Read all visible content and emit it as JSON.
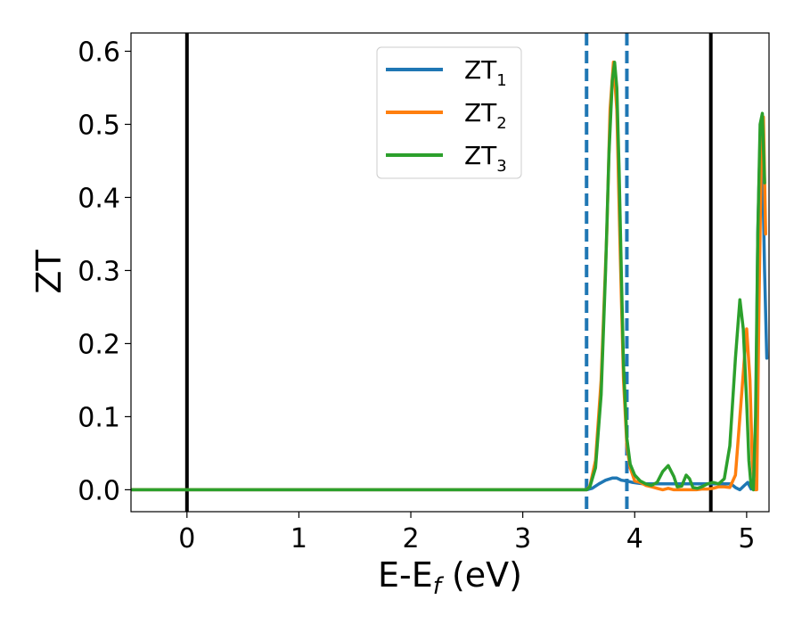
{
  "chart_data": {
    "type": "line",
    "title": "",
    "xlabel": "E-E",
    "xlabel_sub": "f",
    "xlabel_unit": " (eV)",
    "ylabel": "ZT",
    "xlim": [
      -0.5,
      5.2
    ],
    "ylim": [
      -0.03,
      0.625
    ],
    "xticks": [
      0,
      1,
      2,
      3,
      4,
      5
    ],
    "xtick_labels": [
      "0",
      "1",
      "2",
      "3",
      "4",
      "5"
    ],
    "yticks": [
      0.0,
      0.1,
      0.2,
      0.3,
      0.4,
      0.5,
      0.6
    ],
    "ytick_labels": [
      "0.0",
      "0.1",
      "0.2",
      "0.3",
      "0.4",
      "0.5",
      "0.6"
    ],
    "grid": false,
    "legend_position": "top-center",
    "vlines": [
      {
        "x": 0.0,
        "style": "solid",
        "color": "#000000"
      },
      {
        "x": 4.68,
        "style": "solid",
        "color": "#000000"
      },
      {
        "x": 3.57,
        "style": "dashed",
        "color": "#1f77b4"
      },
      {
        "x": 3.93,
        "style": "dashed",
        "color": "#1f77b4"
      }
    ],
    "series": [
      {
        "name": "ZT",
        "sub": "1",
        "color": "#1f77b4",
        "x": [
          -0.5,
          3.57,
          3.62,
          3.68,
          3.74,
          3.8,
          3.84,
          3.88,
          3.93,
          3.98,
          4.03,
          4.08,
          4.15,
          4.3,
          4.45,
          4.6,
          4.7,
          4.76,
          4.82,
          4.86,
          4.9,
          4.94,
          4.98,
          5.01,
          5.04,
          5.06,
          5.08,
          5.1,
          5.12,
          5.14,
          5.16,
          5.18
        ],
        "y": [
          0.0,
          0.0,
          0.002,
          0.008,
          0.013,
          0.016,
          0.016,
          0.013,
          0.012,
          0.01,
          0.009,
          0.008,
          0.008,
          0.008,
          0.008,
          0.008,
          0.008,
          0.008,
          0.008,
          0.008,
          0.003,
          0.0,
          0.006,
          0.01,
          0.001,
          0.004,
          0.05,
          0.35,
          0.48,
          0.46,
          0.3,
          0.18
        ]
      },
      {
        "name": "ZT",
        "sub": "2",
        "color": "#ff7f0e",
        "x": [
          -0.5,
          3.57,
          3.6,
          3.65,
          3.7,
          3.75,
          3.78,
          3.81,
          3.84,
          3.87,
          3.9,
          3.93,
          3.96,
          4.0,
          4.05,
          4.1,
          4.15,
          4.2,
          4.25,
          4.3,
          4.35,
          4.4,
          4.45,
          4.5,
          4.55,
          4.6,
          4.65,
          4.7,
          4.75,
          4.8,
          4.85,
          4.9,
          4.95,
          5.0,
          5.03,
          5.05,
          5.07,
          5.09,
          5.11,
          5.13,
          5.15,
          5.17
        ],
        "y": [
          0.0,
          0.0,
          0.005,
          0.04,
          0.15,
          0.35,
          0.52,
          0.585,
          0.52,
          0.33,
          0.15,
          0.06,
          0.03,
          0.012,
          0.01,
          0.006,
          0.004,
          0.002,
          0.0,
          0.002,
          0.0,
          0.0,
          0.0,
          0.0,
          0.0,
          0.001,
          0.001,
          0.002,
          0.004,
          0.004,
          0.003,
          0.02,
          0.12,
          0.22,
          0.15,
          0.04,
          0.0,
          0.0,
          0.25,
          0.45,
          0.51,
          0.35
        ]
      },
      {
        "name": "ZT",
        "sub": "3",
        "color": "#2ca02c",
        "x": [
          -0.5,
          3.57,
          3.6,
          3.65,
          3.7,
          3.74,
          3.77,
          3.8,
          3.82,
          3.84,
          3.86,
          3.88,
          3.9,
          3.93,
          3.96,
          4.0,
          4.05,
          4.1,
          4.15,
          4.2,
          4.25,
          4.3,
          4.35,
          4.38,
          4.42,
          4.46,
          4.49,
          4.52,
          4.56,
          4.6,
          4.65,
          4.7,
          4.75,
          4.8,
          4.85,
          4.9,
          4.94,
          4.97,
          5.0,
          5.02,
          5.04,
          5.06,
          5.08,
          5.1,
          5.12,
          5.14,
          5.16
        ],
        "y": [
          0.0,
          0.0,
          0.004,
          0.03,
          0.13,
          0.3,
          0.46,
          0.56,
          0.585,
          0.55,
          0.44,
          0.3,
          0.17,
          0.07,
          0.035,
          0.02,
          0.012,
          0.008,
          0.006,
          0.01,
          0.025,
          0.033,
          0.018,
          0.004,
          0.005,
          0.02,
          0.015,
          0.003,
          0.002,
          0.004,
          0.008,
          0.01,
          0.008,
          0.015,
          0.06,
          0.18,
          0.26,
          0.22,
          0.12,
          0.04,
          0.005,
          0.0,
          0.1,
          0.35,
          0.5,
          0.515,
          0.42
        ]
      }
    ]
  }
}
